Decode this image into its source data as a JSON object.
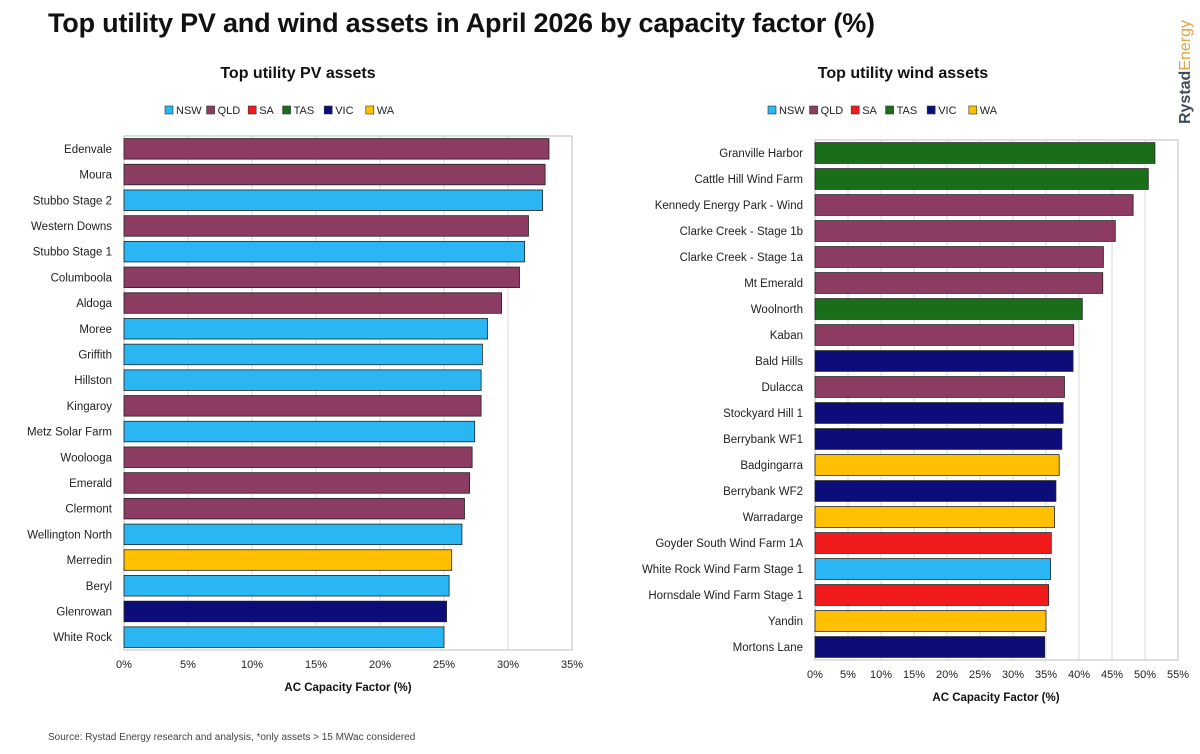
{
  "page": {
    "title": "Top utility PV and wind assets in April 2026 by capacity factor (%)",
    "source": "Source: Rystad Energy research and analysis, *only assets > 15 MWac considered",
    "brand": {
      "part1": "Rystad",
      "part2": "Energy"
    }
  },
  "colors": {
    "NSW": "#29b6f2",
    "QLD": "#8c3b62",
    "SA": "#f21b1b",
    "TAS": "#1a6e1a",
    "VIC": "#0d0d7a",
    "WA": "#ffc000"
  },
  "chart_data": [
    {
      "type": "bar",
      "orientation": "horizontal",
      "title": "Top utility PV assets",
      "xlabel": "AC Capacity Factor (%)",
      "xlim": [
        0,
        35
      ],
      "xticks": [
        "0%",
        "5%",
        "10%",
        "15%",
        "20%",
        "25%",
        "30%",
        "35%"
      ],
      "grid": true,
      "legend_position": "top",
      "legend": [
        "NSW",
        "QLD",
        "SA",
        "TAS",
        "VIC",
        "WA"
      ],
      "categories": [
        "Edenvale",
        "Moura",
        "Stubbo Stage 2",
        "Western Downs",
        "Stubbo Stage 1",
        "Columboola",
        "Aldoga",
        "Moree",
        "Griffith",
        "Hillston",
        "Kingaroy",
        "Metz Solar Farm",
        "Woolooga",
        "Emerald",
        "Clermont",
        "Wellington North",
        "Merredin",
        "Beryl",
        "Glenrowan",
        "White Rock"
      ],
      "values": [
        33.2,
        32.9,
        32.7,
        31.6,
        31.3,
        30.9,
        29.5,
        28.4,
        28.0,
        27.9,
        27.9,
        27.4,
        27.2,
        27.0,
        26.6,
        26.4,
        25.6,
        25.4,
        25.2,
        25.0
      ],
      "states": [
        "QLD",
        "QLD",
        "NSW",
        "QLD",
        "NSW",
        "QLD",
        "QLD",
        "NSW",
        "NSW",
        "NSW",
        "QLD",
        "NSW",
        "QLD",
        "QLD",
        "QLD",
        "NSW",
        "WA",
        "NSW",
        "VIC",
        "NSW"
      ]
    },
    {
      "type": "bar",
      "orientation": "horizontal",
      "title": "Top utility wind assets",
      "xlabel": "AC Capacity Factor (%)",
      "xlim": [
        0,
        55
      ],
      "xticks": [
        "0%",
        "5%",
        "10%",
        "15%",
        "20%",
        "25%",
        "30%",
        "35%",
        "40%",
        "45%",
        "50%",
        "55%"
      ],
      "grid": true,
      "legend_position": "top",
      "legend": [
        "NSW",
        "QLD",
        "SA",
        "TAS",
        "VIC",
        "WA"
      ],
      "categories": [
        "Granville Harbor",
        "Cattle Hill Wind Farm",
        "Kennedy Energy Park - Wind",
        "Clarke Creek - Stage 1b",
        "Clarke Creek - Stage 1a",
        "Mt Emerald",
        "Woolnorth",
        "Kaban",
        "Bald Hills",
        "Dulacca",
        "Stockyard Hill 1",
        "Berrybank WF1",
        "Badgingarra",
        "Berrybank WF2",
        "Warradarge",
        "Goyder South Wind Farm 1A",
        "White Rock Wind Farm Stage 1",
        "Hornsdale Wind Farm Stage 1",
        "Yandin",
        "Mortons Lane"
      ],
      "values": [
        51.5,
        50.5,
        48.2,
        45.5,
        43.7,
        43.6,
        40.5,
        39.2,
        39.1,
        37.8,
        37.6,
        37.4,
        37.0,
        36.5,
        36.3,
        35.8,
        35.7,
        35.4,
        35.0,
        34.8
      ],
      "states": [
        "TAS",
        "TAS",
        "QLD",
        "QLD",
        "QLD",
        "QLD",
        "TAS",
        "QLD",
        "VIC",
        "QLD",
        "VIC",
        "VIC",
        "WA",
        "VIC",
        "WA",
        "SA",
        "NSW",
        "SA",
        "WA",
        "VIC"
      ]
    }
  ]
}
